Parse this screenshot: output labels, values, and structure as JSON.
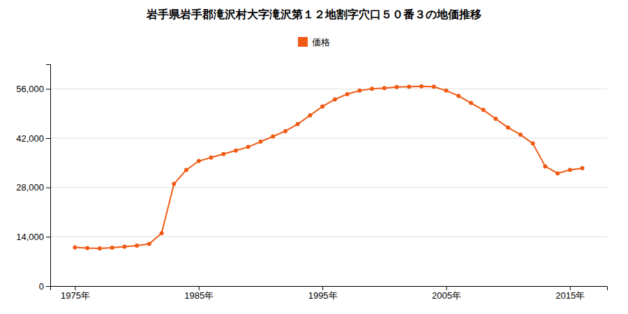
{
  "chart_data": {
    "type": "line",
    "title": "岩手県岩手郡滝沢村大字滝沢第１２地割字穴口５０番３の地価推移",
    "x": [
      1975,
      1976,
      1977,
      1978,
      1979,
      1980,
      1981,
      1982,
      1983,
      1984,
      1985,
      1986,
      1987,
      1988,
      1989,
      1990,
      1991,
      1992,
      1993,
      1994,
      1995,
      1996,
      1997,
      1998,
      1999,
      2000,
      2001,
      2002,
      2003,
      2004,
      2005,
      2006,
      2007,
      2008,
      2009,
      2010,
      2011,
      2012,
      2013,
      2014,
      2015,
      2016
    ],
    "series": [
      {
        "name": "価格",
        "color": "#f05a14",
        "marker": "circle",
        "values": [
          11000,
          10800,
          10700,
          10900,
          11200,
          11500,
          12000,
          15000,
          29000,
          33000,
          35500,
          36500,
          37500,
          38500,
          39500,
          41000,
          42500,
          44000,
          46000,
          48500,
          51000,
          53000,
          54500,
          55500,
          56000,
          56200,
          56500,
          56600,
          56700,
          56600,
          55500,
          54000,
          52000,
          50000,
          47500,
          45000,
          43000,
          40500,
          34000,
          32000,
          33000,
          33500
        ]
      }
    ],
    "xlim": [
      1973,
      2018
    ],
    "xticks": [
      {
        "value": 1975,
        "label": "1975年"
      },
      {
        "value": 1985,
        "label": "1985年"
      },
      {
        "value": 1995,
        "label": "1995年"
      },
      {
        "value": 2005,
        "label": "2005年"
      },
      {
        "value": 2015,
        "label": "2015年"
      }
    ],
    "ylim": [
      0,
      63000
    ],
    "yticks": [
      0,
      {
        "value": 14000,
        "label": "14,000"
      },
      {
        "value": 28000,
        "label": "28,000"
      },
      {
        "value": 42000,
        "label": "42,000"
      },
      {
        "value": 56000,
        "label": "56,000"
      }
    ],
    "grid": "y",
    "legend": "top"
  }
}
